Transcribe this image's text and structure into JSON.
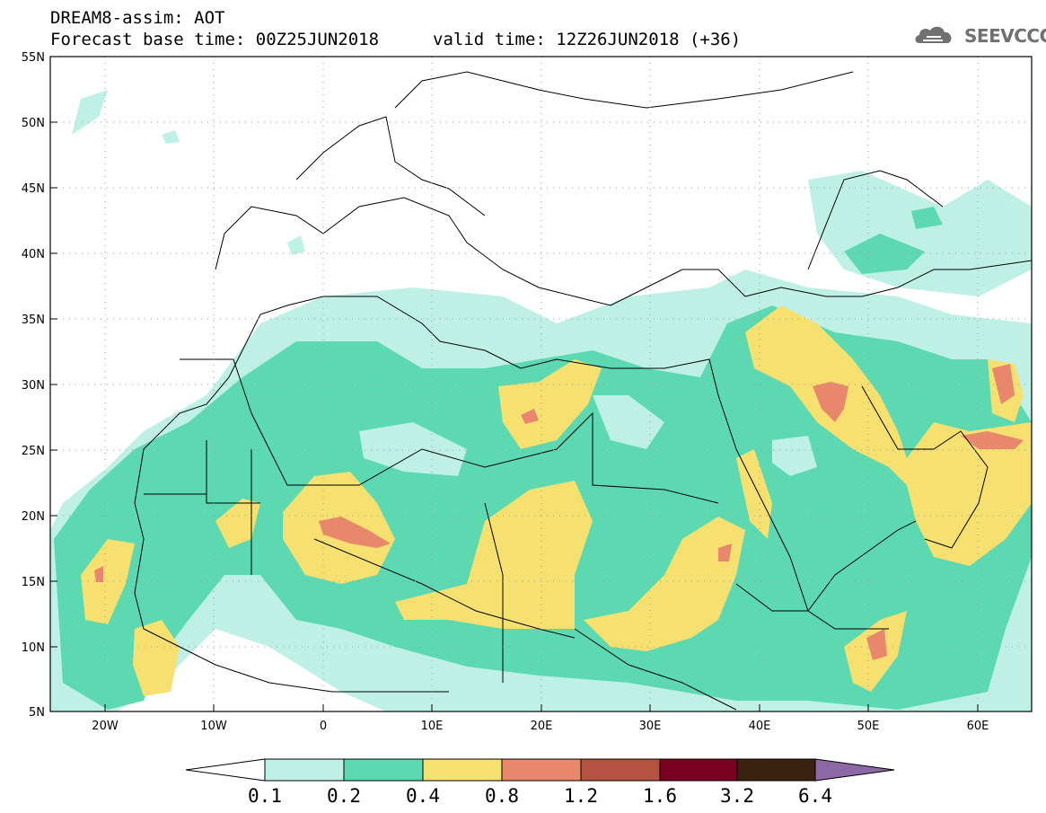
{
  "title": {
    "model": "DREAM8-assim: AOT",
    "base_time": "Forecast base time: 00Z25JUN2018",
    "valid_time": "valid time: 12Z26JUN2018 (+36)"
  },
  "logo": {
    "text": "SEEVCCC",
    "icon": "cloud-logo-icon"
  },
  "colors": {
    "0.1-0.2": "#bff0e6",
    "0.2-0.4": "#5cd9b0",
    "0.4-0.8": "#f5e070",
    "0.8-1.2": "#e8876b",
    "1.2-1.6": "#b45341",
    "1.6-3.2": "#7a0022",
    "3.2-6.4": "#3a2210",
    "gt6.4": "#8e67a6"
  },
  "map": {
    "lon_range": [
      -25,
      65
    ],
    "lat_range": [
      5,
      55
    ],
    "lat_labels": [
      "55N",
      "50N",
      "45N",
      "40N",
      "35N",
      "30N",
      "25N",
      "20N",
      "15N",
      "10N",
      "5N"
    ],
    "lon_labels": [
      "20W",
      "10W",
      "0",
      "10E",
      "20E",
      "30E",
      "40E",
      "50E",
      "60E"
    ]
  },
  "colorbar": {
    "labels": [
      "0.1",
      "0.2",
      "0.4",
      "0.8",
      "1.2",
      "1.6",
      "3.2",
      "6.4"
    ]
  }
}
